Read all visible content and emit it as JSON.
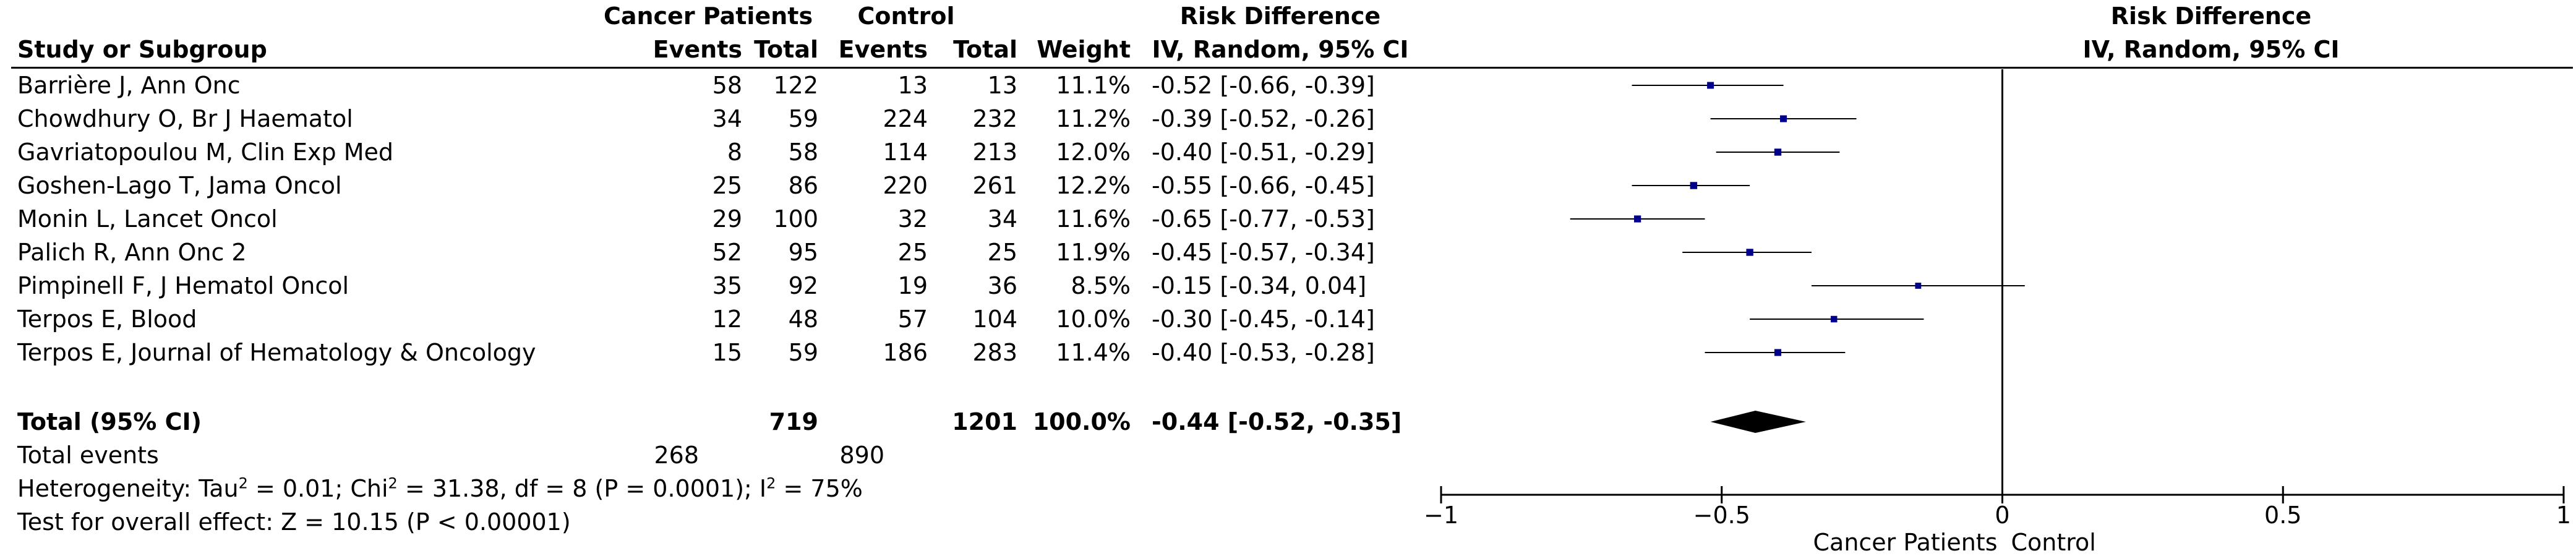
{
  "chart_data": {
    "type": "forest",
    "title": "Risk Difference",
    "subtitle": "IV, Random, 95% CI",
    "headers": {
      "group1": "Cancer Patients",
      "group2": "Control",
      "study": "Study or Subgroup",
      "events1": "Events",
      "total1": "Total",
      "events2": "Events",
      "total2": "Total",
      "weight": "Weight",
      "effect_title": "Risk Difference",
      "effect_sub": "IV, Random, 95% CI"
    },
    "studies": [
      {
        "name": "Barrière J, Ann Onc",
        "e1": "58",
        "n1": "122",
        "e2": "13",
        "n2": "13",
        "weight": "11.1%",
        "ci_text": "-0.52 [-0.66, -0.39]",
        "est": -0.52,
        "lo": -0.66,
        "hi": -0.39,
        "w": 11.1
      },
      {
        "name": "Chowdhury O, Br J Haematol",
        "e1": "34",
        "n1": "59",
        "e2": "224",
        "n2": "232",
        "weight": "11.2%",
        "ci_text": "-0.39 [-0.52, -0.26]",
        "est": -0.39,
        "lo": -0.52,
        "hi": -0.26,
        "w": 11.2
      },
      {
        "name": "Gavriatopoulou M, Clin Exp Med",
        "e1": "8",
        "n1": "58",
        "e2": "114",
        "n2": "213",
        "weight": "12.0%",
        "ci_text": "-0.40 [-0.51, -0.29]",
        "est": -0.4,
        "lo": -0.51,
        "hi": -0.29,
        "w": 12.0
      },
      {
        "name": "Goshen-Lago T, Jama Oncol",
        "e1": "25",
        "n1": "86",
        "e2": "220",
        "n2": "261",
        "weight": "12.2%",
        "ci_text": "-0.55 [-0.66, -0.45]",
        "est": -0.55,
        "lo": -0.66,
        "hi": -0.45,
        "w": 12.2
      },
      {
        "name": "Monin L, Lancet Oncol",
        "e1": "29",
        "n1": "100",
        "e2": "32",
        "n2": "34",
        "weight": "11.6%",
        "ci_text": "-0.65 [-0.77, -0.53]",
        "est": -0.65,
        "lo": -0.77,
        "hi": -0.53,
        "w": 11.6
      },
      {
        "name": "Palich R, Ann Onc 2",
        "e1": "52",
        "n1": "95",
        "e2": "25",
        "n2": "25",
        "weight": "11.9%",
        "ci_text": "-0.45 [-0.57, -0.34]",
        "est": -0.45,
        "lo": -0.57,
        "hi": -0.34,
        "w": 11.9
      },
      {
        "name": "Pimpinell F, J Hematol Oncol",
        "e1": "35",
        "n1": "92",
        "e2": "19",
        "n2": "36",
        "weight": "8.5%",
        "ci_text": "-0.15 [-0.34, 0.04]",
        "est": -0.15,
        "lo": -0.34,
        "hi": 0.04,
        "w": 8.5
      },
      {
        "name": "Terpos E, Blood",
        "e1": "12",
        "n1": "48",
        "e2": "57",
        "n2": "104",
        "weight": "10.0%",
        "ci_text": "-0.30 [-0.45, -0.14]",
        "est": -0.3,
        "lo": -0.45,
        "hi": -0.14,
        "w": 10.0
      },
      {
        "name": "Terpos E, Journal of Hematology & Oncology",
        "e1": "15",
        "n1": "59",
        "e2": "186",
        "n2": "283",
        "weight": "11.4%",
        "ci_text": "-0.40 [-0.53, -0.28]",
        "est": -0.4,
        "lo": -0.53,
        "hi": -0.28,
        "w": 11.4
      }
    ],
    "total": {
      "label": "Total (95% CI)",
      "n1": "719",
      "n2": "1201",
      "weight": "100.0%",
      "ci_text": "-0.44 [-0.52, -0.35]",
      "est": -0.44,
      "lo": -0.52,
      "hi": -0.35
    },
    "total_events": {
      "label": "Total events",
      "e1": "268",
      "e2": "890"
    },
    "heterogeneity": {
      "pre": "Heterogeneity: Tau",
      "tau_sup": "2",
      "mid": " = 0.01; Chi",
      "chi_sup": "2",
      "post": " = 31.38, df = 8 (P = 0.0001); I",
      "i_sup": "2",
      "end": " = 75%"
    },
    "overall_effect": "Test for overall effect: Z = 10.15 (P < 0.00001)",
    "axis": {
      "xlim": [
        -1,
        1
      ],
      "ticks": [
        -1,
        -0.5,
        0,
        0.5,
        1
      ],
      "tick_labels": [
        "-1",
        "-0.5",
        "0",
        "0.5",
        "1"
      ],
      "left_label": "Cancer Patients",
      "right_label": "Control"
    },
    "colors": {
      "marker": "#00008b",
      "line": "#000000",
      "diamond": "#000000"
    }
  }
}
